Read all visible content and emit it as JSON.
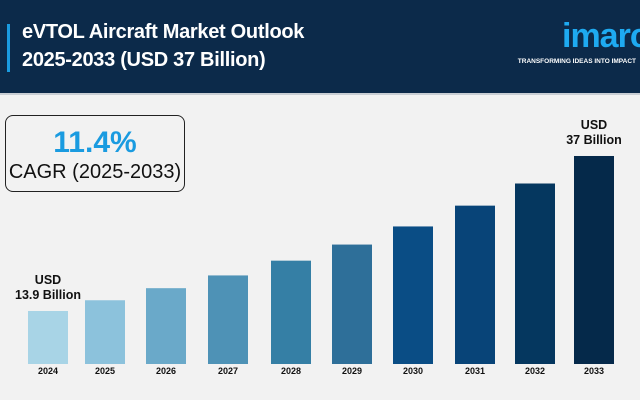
{
  "header": {
    "title_line1": "eVTOL Aircraft Market Outlook",
    "title_line2": "2025-2033 (USD 37 Billion)",
    "logo_text": "imarc",
    "logo_tagline": "TRANSFORMING IDEAS INTO IMPACT",
    "accent_color": "#1a9be0",
    "background_color": "#0c2a4a"
  },
  "cagr": {
    "value": "11.4%",
    "label": "CAGR (2025-2033)"
  },
  "chart_data": {
    "type": "bar",
    "title": "",
    "xlabel": "",
    "ylabel": "",
    "grid": false,
    "categories": [
      "2024",
      "2025",
      "2026",
      "2027",
      "2028",
      "2029",
      "2030",
      "2031",
      "2032",
      "2033"
    ],
    "values": [
      13.9,
      15.5,
      17.3,
      19.2,
      21.4,
      23.8,
      26.5,
      29.6,
      32.9,
      37
    ],
    "annotations": [
      {
        "category": "2024",
        "line1": "USD",
        "line2": "13.9 Billion"
      },
      {
        "category": "2033",
        "line1": "USD",
        "line2": "37 Billion"
      }
    ],
    "colors": [
      "#a8d4e6",
      "#8cc2dc",
      "#6aa9c9",
      "#4e92b6",
      "#357fa5",
      "#2e6f99",
      "#0a4d85",
      "#084478",
      "#05375f",
      "#05294a"
    ]
  }
}
